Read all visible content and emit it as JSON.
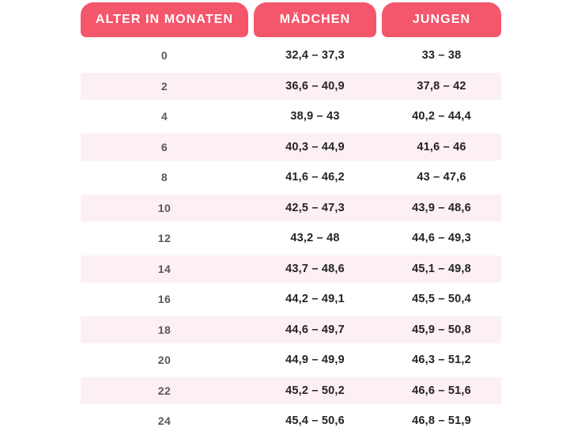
{
  "colors": {
    "header_bg": "#F4566C",
    "header_text": "#FFFFFF",
    "row_alt_bg": "#FCF0F3",
    "age_text": "#59585B",
    "value_text": "#242326",
    "page_bg": "#FFFFFF"
  },
  "table": {
    "columns": [
      {
        "label": "ALTER IN MONATEN"
      },
      {
        "label": "MÄDCHEN"
      },
      {
        "label": "JUNGEN"
      }
    ],
    "rows": [
      {
        "age": "0",
        "girls": "32,4 – 37,3",
        "boys": "33 – 38"
      },
      {
        "age": "2",
        "girls": "36,6 – 40,9",
        "boys": "37,8 – 42"
      },
      {
        "age": "4",
        "girls": "38,9 – 43",
        "boys": "40,2 – 44,4"
      },
      {
        "age": "6",
        "girls": "40,3 – 44,9",
        "boys": "41,6 – 46"
      },
      {
        "age": "8",
        "girls": "41,6 – 46,2",
        "boys": "43 – 47,6"
      },
      {
        "age": "10",
        "girls": "42,5 – 47,3",
        "boys": "43,9 – 48,6"
      },
      {
        "age": "12",
        "girls": "43,2 – 48",
        "boys": "44,6 – 49,3"
      },
      {
        "age": "14",
        "girls": "43,7 – 48,6",
        "boys": "45,1 – 49,8"
      },
      {
        "age": "16",
        "girls": "44,2 – 49,1",
        "boys": "45,5 – 50,4"
      },
      {
        "age": "18",
        "girls": "44,6 – 49,7",
        "boys": "45,9 – 50,8"
      },
      {
        "age": "20",
        "girls": "44,9 – 49,9",
        "boys": "46,3 – 51,2"
      },
      {
        "age": "22",
        "girls": "45,2 – 50,2",
        "boys": "46,6 – 51,6"
      },
      {
        "age": "24",
        "girls": "45,4 – 50,6",
        "boys": "46,8 – 51,9"
      }
    ]
  },
  "chart_data": {
    "type": "table",
    "title": "",
    "columns": [
      "ALTER IN MONATEN",
      "MÄDCHEN",
      "JUNGEN"
    ],
    "categories": [
      0,
      2,
      4,
      6,
      8,
      10,
      12,
      14,
      16,
      18,
      20,
      22,
      24
    ],
    "series": [
      {
        "name": "MÄDCHEN",
        "values": [
          [
            32.4,
            37.3
          ],
          [
            36.6,
            40.9
          ],
          [
            38.9,
            43
          ],
          [
            40.3,
            44.9
          ],
          [
            41.6,
            46.2
          ],
          [
            42.5,
            47.3
          ],
          [
            43.2,
            48
          ],
          [
            43.7,
            48.6
          ],
          [
            44.2,
            49.1
          ],
          [
            44.6,
            49.7
          ],
          [
            44.9,
            49.9
          ],
          [
            45.2,
            50.2
          ],
          [
            45.4,
            50.6
          ]
        ]
      },
      {
        "name": "JUNGEN",
        "values": [
          [
            33,
            38
          ],
          [
            37.8,
            42
          ],
          [
            40.2,
            44.4
          ],
          [
            41.6,
            46
          ],
          [
            43,
            47.6
          ],
          [
            43.9,
            48.6
          ],
          [
            44.6,
            49.3
          ],
          [
            45.1,
            49.8
          ],
          [
            45.5,
            50.4
          ],
          [
            45.9,
            50.8
          ],
          [
            46.3,
            51.2
          ],
          [
            46.6,
            51.6
          ],
          [
            46.8,
            51.9
          ]
        ]
      }
    ],
    "xlabel": "Alter in Monaten",
    "ylabel": "",
    "legend_position": "header",
    "grid": false
  }
}
